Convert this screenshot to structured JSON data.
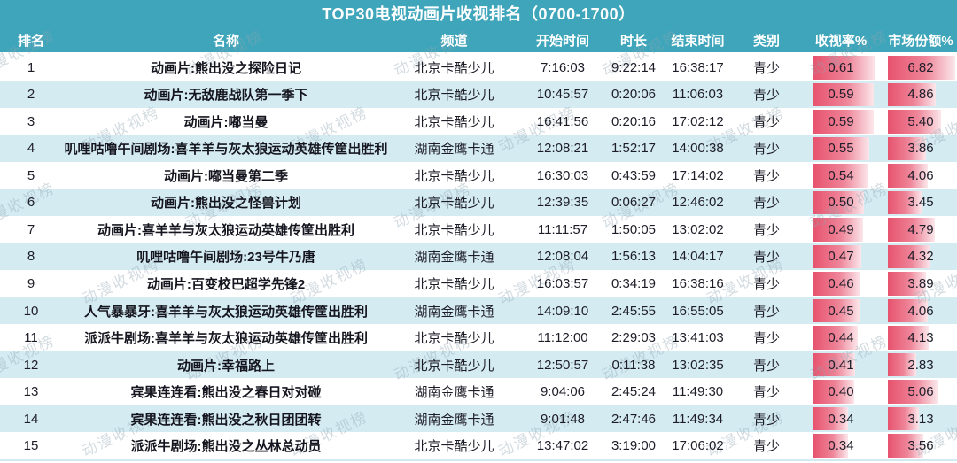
{
  "title": "TOP30电视动画片收视排名（0700-1700）",
  "watermark_text": "动漫收视榜",
  "colors": {
    "header_bg": "#3EA5BA",
    "row_alt_bg": "#D5EBF2",
    "bar_color_start": "#E7536E",
    "bar_color_end": "#FBE7EB"
  },
  "chart_data": {
    "type": "table",
    "title": "TOP30电视动画片收视排名（0700-1700）",
    "columns": [
      "排名",
      "名称",
      "频道",
      "开始时间",
      "时长",
      "结束时间",
      "类别",
      "收视率%",
      "市场份额%"
    ],
    "bar_columns": {
      "rating_max": 0.61,
      "share_max": 6.82
    },
    "rows": [
      {
        "rank": "1",
        "name": "动画片:熊出没之探险日记",
        "channel": "北京卡酷少儿",
        "start": "7:16:03",
        "duration": "9:22:14",
        "end": "16:38:17",
        "category": "青少",
        "rating": "0.61",
        "share": "6.82"
      },
      {
        "rank": "2",
        "name": "动画片:无敌鹿战队第一季下",
        "channel": "北京卡酷少儿",
        "start": "10:45:57",
        "duration": "0:20:06",
        "end": "11:06:03",
        "category": "青少",
        "rating": "0.59",
        "share": "4.86"
      },
      {
        "rank": "3",
        "name": "动画片:嘟当曼",
        "channel": "北京卡酷少儿",
        "start": "16:41:56",
        "duration": "0:20:16",
        "end": "17:02:12",
        "category": "青少",
        "rating": "0.59",
        "share": "5.40"
      },
      {
        "rank": "4",
        "name": "叽哩咕噜午间剧场:喜羊羊与灰太狼运动英雄传筐出胜利",
        "channel": "湖南金鹰卡通",
        "start": "12:08:21",
        "duration": "1:52:17",
        "end": "14:00:38",
        "category": "青少",
        "rating": "0.55",
        "share": "3.86"
      },
      {
        "rank": "5",
        "name": "动画片:嘟当曼第二季",
        "channel": "北京卡酷少儿",
        "start": "16:30:03",
        "duration": "0:43:59",
        "end": "17:14:02",
        "category": "青少",
        "rating": "0.54",
        "share": "4.06"
      },
      {
        "rank": "6",
        "name": "动画片:熊出没之怪兽计划",
        "channel": "北京卡酷少儿",
        "start": "12:39:35",
        "duration": "0:06:27",
        "end": "12:46:02",
        "category": "青少",
        "rating": "0.50",
        "share": "3.45"
      },
      {
        "rank": "7",
        "name": "动画片:喜羊羊与灰太狼运动英雄传筐出胜利",
        "channel": "北京卡酷少儿",
        "start": "11:11:57",
        "duration": "1:50:05",
        "end": "13:02:02",
        "category": "青少",
        "rating": "0.49",
        "share": "4.79"
      },
      {
        "rank": "8",
        "name": "叽哩咕噜午间剧场:23号牛乃唐",
        "channel": "湖南金鹰卡通",
        "start": "12:08:04",
        "duration": "1:56:13",
        "end": "14:04:17",
        "category": "青少",
        "rating": "0.47",
        "share": "4.32"
      },
      {
        "rank": "9",
        "name": "动画片:百变校巴超学先锋2",
        "channel": "北京卡酷少儿",
        "start": "16:03:57",
        "duration": "0:34:19",
        "end": "16:38:16",
        "category": "青少",
        "rating": "0.46",
        "share": "3.89"
      },
      {
        "rank": "10",
        "name": "人气暴暴牙:喜羊羊与灰太狼运动英雄传筐出胜利",
        "channel": "湖南金鹰卡通",
        "start": "14:09:10",
        "duration": "2:45:55",
        "end": "16:55:05",
        "category": "青少",
        "rating": "0.45",
        "share": "4.06"
      },
      {
        "rank": "11",
        "name": "派派牛剧场:喜羊羊与灰太狼运动英雄传筐出胜利",
        "channel": "北京卡酷少儿",
        "start": "11:12:00",
        "duration": "2:29:03",
        "end": "13:41:03",
        "category": "青少",
        "rating": "0.44",
        "share": "4.13"
      },
      {
        "rank": "12",
        "name": "动画片:幸福路上",
        "channel": "北京卡酷少儿",
        "start": "12:50:57",
        "duration": "0:11:38",
        "end": "13:02:35",
        "category": "青少",
        "rating": "0.41",
        "share": "2.83"
      },
      {
        "rank": "13",
        "name": "宾果连连看:熊出没之春日对对碰",
        "channel": "湖南金鹰卡通",
        "start": "9:04:06",
        "duration": "2:45:24",
        "end": "11:49:30",
        "category": "青少",
        "rating": "0.40",
        "share": "5.06"
      },
      {
        "rank": "14",
        "name": "宾果连连看:熊出没之秋日团团转",
        "channel": "湖南金鹰卡通",
        "start": "9:01:48",
        "duration": "2:47:46",
        "end": "11:49:34",
        "category": "青少",
        "rating": "0.34",
        "share": "3.13"
      },
      {
        "rank": "15",
        "name": "派派牛剧场:熊出没之丛林总动员",
        "channel": "北京卡酷少儿",
        "start": "13:47:02",
        "duration": "3:19:00",
        "end": "17:06:02",
        "category": "青少",
        "rating": "0.34",
        "share": "3.56"
      }
    ]
  }
}
